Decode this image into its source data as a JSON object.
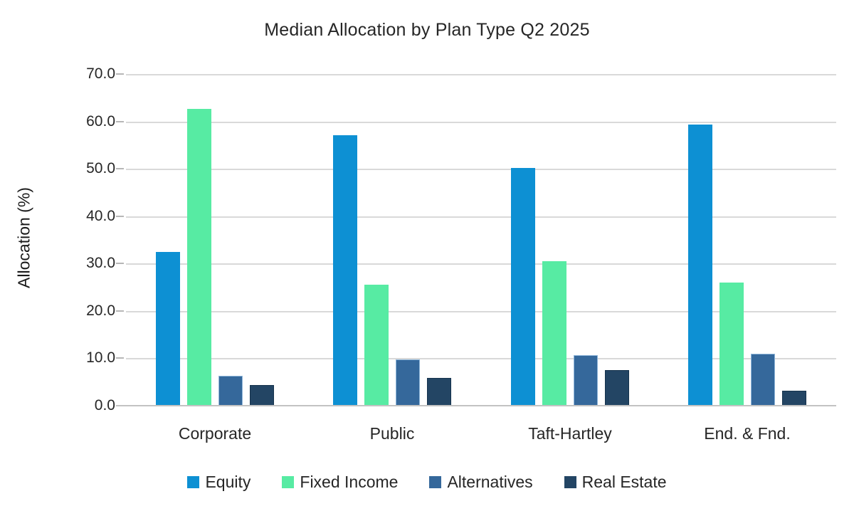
{
  "chart_data": {
    "type": "bar",
    "title": "Median Allocation by Plan Type Q2 2025",
    "ylabel": "Allocation (%)",
    "xlabel": "",
    "categories": [
      "Corporate",
      "Public",
      "Taft-Hartley",
      "End. & Fnd."
    ],
    "series": [
      {
        "name": "Equity",
        "color": "#0d90d3",
        "values": [
          32.4,
          57.1,
          50.2,
          59.4
        ]
      },
      {
        "name": "Fixed Income",
        "color": "#57eba3",
        "values": [
          62.6,
          25.5,
          30.5,
          26.0
        ]
      },
      {
        "name": "Alternatives",
        "color": "#35689b",
        "values": [
          6.3,
          9.7,
          10.7,
          11.0
        ]
      },
      {
        "name": "Real Estate",
        "color": "#234564",
        "values": [
          4.3,
          5.9,
          7.5,
          3.2
        ]
      }
    ],
    "ylim": [
      0,
      70
    ],
    "ytick_step": 10,
    "ytick_labels": [
      "70.0",
      "60.0",
      "50.0",
      "40.0",
      "30.0",
      "20.0",
      "10.0",
      "0.0"
    ],
    "grid": true,
    "legend_position": "bottom",
    "colors": {
      "gridline": "#d9d9d9",
      "axis_line": "#c3c3c3",
      "tick_mark": "#b7b7b7",
      "text": "#262626"
    }
  }
}
